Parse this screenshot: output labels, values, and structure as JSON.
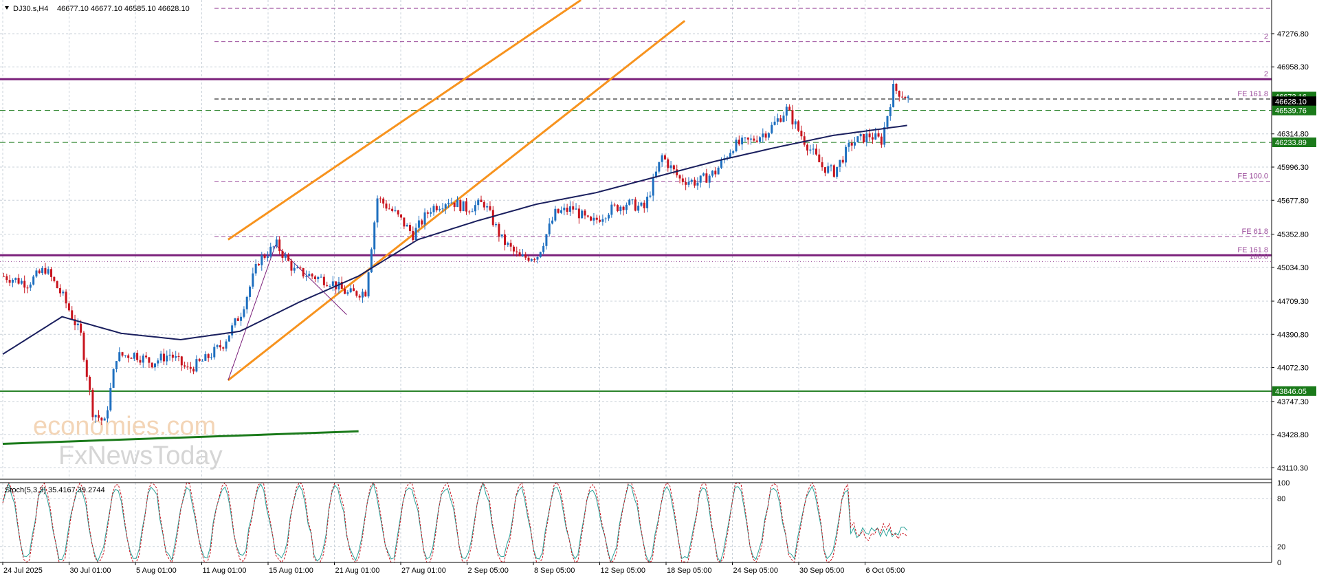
{
  "header": {
    "symbol": "DJ30.s,H4",
    "ohlc": "46677.10 46677.10 46585.10 46628.10"
  },
  "watermark": {
    "line1": "economies.com",
    "line2": "FxNewsToday"
  },
  "colors": {
    "bull": "#1e6fbf",
    "bear": "#c8141e",
    "ma": "#1a1f5e",
    "channel": "#f7931e",
    "support": "#1a7a1a",
    "resistance": "#7a1f7a",
    "fib": "#9a4a9a",
    "stoch_main": "#2aa198",
    "stoch_signal": "#c8141e"
  },
  "chart_data": {
    "type": "candlestick",
    "title": "",
    "y_ticks": [
      "47276.80",
      "46958.30",
      "46314.80",
      "45996.30",
      "45677.80",
      "45352.80",
      "45034.30",
      "44709.30",
      "44390.80",
      "44072.30",
      "43747.30",
      "43428.80",
      "43110.30"
    ],
    "y_range": [
      43000,
      47600
    ],
    "x_labels": [
      "24 Jul 2025",
      "30 Jul 01:00",
      "5 Aug 01:00",
      "11 Aug 01:00",
      "15 Aug 01:00",
      "21 Aug 01:00",
      "27 Aug 01:00",
      "2 Sep 05:00",
      "8 Sep 05:00",
      "12 Sep 05:00",
      "18 Sep 05:00",
      "24 Sep 05:00",
      "30 Sep 05:00",
      "6 Oct 05:00"
    ],
    "bar_count": 306,
    "price_anchors": [
      [
        0,
        44950
      ],
      [
        8,
        44880
      ],
      [
        14,
        45020
      ],
      [
        20,
        44750
      ],
      [
        26,
        44380
      ],
      [
        30,
        43650
      ],
      [
        34,
        43540
      ],
      [
        38,
        44180
      ],
      [
        44,
        44200
      ],
      [
        50,
        44120
      ],
      [
        56,
        44200
      ],
      [
        62,
        44050
      ],
      [
        68,
        44150
      ],
      [
        74,
        44300
      ],
      [
        80,
        44600
      ],
      [
        86,
        45100
      ],
      [
        92,
        45250
      ],
      [
        98,
        45000
      ],
      [
        104,
        44950
      ],
      [
        110,
        44900
      ],
      [
        116,
        44780
      ],
      [
        122,
        44800
      ],
      [
        126,
        45700
      ],
      [
        132,
        45550
      ],
      [
        138,
        45350
      ],
      [
        144,
        45600
      ],
      [
        150,
        45680
      ],
      [
        156,
        45600
      ],
      [
        162,
        45650
      ],
      [
        168,
        45300
      ],
      [
        174,
        45120
      ],
      [
        180,
        45150
      ],
      [
        186,
        45550
      ],
      [
        192,
        45600
      ],
      [
        198,
        45450
      ],
      [
        204,
        45580
      ],
      [
        210,
        45650
      ],
      [
        216,
        45600
      ],
      [
        222,
        46100
      ],
      [
        228,
        45880
      ],
      [
        234,
        45850
      ],
      [
        240,
        45950
      ],
      [
        246,
        46200
      ],
      [
        252,
        46250
      ],
      [
        258,
        46350
      ],
      [
        264,
        46550
      ],
      [
        270,
        46250
      ],
      [
        276,
        46000
      ],
      [
        280,
        45950
      ],
      [
        286,
        46230
      ],
      [
        292,
        46300
      ],
      [
        296,
        46250
      ],
      [
        300,
        46750
      ],
      [
        304,
        46680
      ],
      [
        306,
        46628
      ]
    ],
    "ma_anchors": [
      [
        0,
        44200
      ],
      [
        20,
        44560
      ],
      [
        40,
        44400
      ],
      [
        60,
        44340
      ],
      [
        80,
        44420
      ],
      [
        100,
        44700
      ],
      [
        120,
        44950
      ],
      [
        140,
        45300
      ],
      [
        160,
        45480
      ],
      [
        180,
        45640
      ],
      [
        200,
        45750
      ],
      [
        220,
        45900
      ],
      [
        240,
        46050
      ],
      [
        260,
        46180
      ],
      [
        280,
        46300
      ],
      [
        306,
        46400
      ]
    ],
    "levels": [
      {
        "name": "resistance-upper",
        "price": 46840,
        "label": "2",
        "style": "solid-purple"
      },
      {
        "name": "fe-161-8-upper",
        "price": 46650,
        "label": "FE 161.8",
        "style": "dash-purple-black"
      },
      {
        "name": "level-46539",
        "price": 46540,
        "label": "",
        "style": "dash-green"
      },
      {
        "name": "level-46233",
        "price": 46233,
        "label": "",
        "style": "dash-green"
      },
      {
        "name": "fib-2",
        "price": 47200,
        "label": "2",
        "style": "dash-purple"
      },
      {
        "name": "fib-top",
        "price": 47520,
        "label": "",
        "style": "dash-purple"
      },
      {
        "name": "fe-100",
        "price": 45860,
        "label": "FE 100.0",
        "style": "dash-purple"
      },
      {
        "name": "fe-61-8",
        "price": 45330,
        "label": "FE 61.8",
        "style": "dash-purple"
      },
      {
        "name": "fe-161-8-lower",
        "price": 45150,
        "label": "FE 161.8",
        "style": "solid-purple"
      },
      {
        "name": "fe-100-lower",
        "price": 45090,
        "label": "100.0",
        "style": "dot-purple"
      },
      {
        "name": "support-43846",
        "price": 43846,
        "label": "",
        "style": "solid-green"
      }
    ],
    "price_boxes": [
      {
        "price": 46673.16,
        "label": "46673.16",
        "color": "#1a7a1a"
      },
      {
        "price": 46628.1,
        "label": "46628.10",
        "color": "#000000"
      },
      {
        "price": 46539.76,
        "label": "46539.76",
        "color": "#1a7a1a"
      },
      {
        "price": 46233.89,
        "label": "46233.89",
        "color": "#1a7a1a"
      },
      {
        "price": 43846.05,
        "label": "43846.05",
        "color": "#1a7a1a"
      }
    ],
    "channel": {
      "upper": [
        [
          76,
          45300
        ],
        [
          195,
          47600
        ]
      ],
      "lower": [
        [
          76,
          43950
        ],
        [
          230,
          47400
        ]
      ]
    },
    "trendline_green": [
      [
        0,
        43340
      ],
      [
        120,
        43460
      ]
    ],
    "swing_lines": [
      [
        [
          76,
          43950
        ],
        [
          92,
          45250
        ]
      ],
      [
        [
          92,
          45250
        ],
        [
          116,
          44580
        ]
      ]
    ],
    "stochastic": {
      "label": "Stoch(5,3,3) 35.4167 39.2744",
      "y_ticks": [
        "100",
        "80",
        "20",
        "0"
      ],
      "range": [
        0,
        100
      ]
    }
  }
}
